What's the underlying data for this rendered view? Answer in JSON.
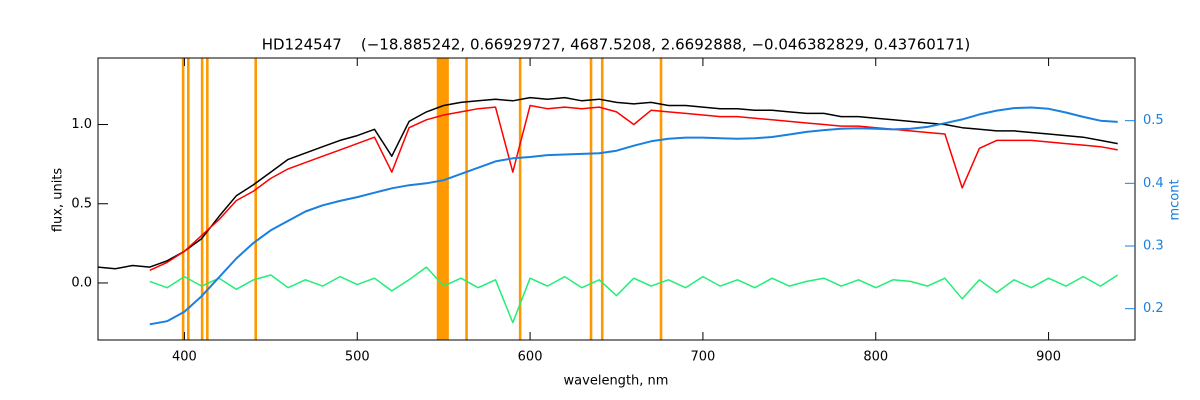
{
  "chart_data": {
    "type": "line",
    "title": "HD124547    (−18.885242, 0.66929727, 4687.5208, 2.6692888, −0.046382829, 0.43760171)",
    "x_label": "wavelength, nm",
    "y_label": "flux, units",
    "y2_label": "mcont",
    "xlim": [
      350,
      950
    ],
    "ylim": [
      -0.36,
      1.42
    ],
    "y2lim": [
      0.15,
      0.6
    ],
    "xticks": [
      400,
      500,
      600,
      700,
      800,
      900
    ],
    "yticks": [
      {
        "value": 0,
        "label": "0.0"
      },
      0.5,
      {
        "value": 1,
        "label": "1.0"
      }
    ],
    "y2ticks": [
      0.2,
      0.3,
      0.4,
      0.5
    ],
    "mask_color": "#ff9900",
    "masks": [
      [
        398.5,
        400
      ],
      [
        401.5,
        403
      ],
      [
        409.5,
        411
      ],
      [
        412.5,
        414
      ],
      [
        440.5,
        442
      ],
      [
        546,
        553
      ],
      [
        562.5,
        564
      ],
      [
        593.5,
        595
      ],
      [
        634.5,
        636
      ],
      [
        641,
        642.5
      ],
      [
        675,
        676.5
      ]
    ],
    "x": [
      350,
      360,
      370,
      380,
      390,
      400,
      410,
      420,
      430,
      440,
      450,
      460,
      470,
      480,
      490,
      500,
      510,
      520,
      530,
      540,
      550,
      560,
      570,
      580,
      590,
      600,
      610,
      620,
      630,
      640,
      650,
      660,
      670,
      680,
      690,
      700,
      710,
      720,
      730,
      740,
      750,
      760,
      770,
      780,
      790,
      800,
      810,
      820,
      830,
      840,
      850,
      860,
      870,
      880,
      890,
      900,
      910,
      920,
      930,
      940
    ],
    "series": [
      {
        "color": "#000000",
        "values": [
          0.1,
          0.09,
          0.11,
          0.1,
          0.14,
          0.2,
          0.28,
          0.42,
          0.55,
          0.62,
          0.7,
          0.78,
          0.82,
          0.86,
          0.9,
          0.93,
          0.97,
          0.8,
          1.02,
          1.08,
          1.12,
          1.14,
          1.15,
          1.16,
          1.15,
          1.17,
          1.16,
          1.17,
          1.15,
          1.16,
          1.14,
          1.13,
          1.14,
          1.12,
          1.12,
          1.11,
          1.1,
          1.1,
          1.09,
          1.09,
          1.08,
          1.07,
          1.07,
          1.05,
          1.05,
          1.04,
          1.03,
          1.02,
          1.01,
          1.0,
          0.98,
          0.97,
          0.96,
          0.96,
          0.95,
          0.94,
          0.93,
          0.92,
          0.9,
          0.88
        ]
      },
      {
        "color": "#ff0000",
        "values": [
          null,
          null,
          null,
          0.08,
          0.13,
          0.2,
          0.3,
          0.4,
          0.52,
          0.58,
          0.66,
          0.72,
          0.76,
          0.8,
          0.84,
          0.88,
          0.92,
          0.7,
          0.98,
          1.03,
          1.06,
          1.08,
          1.1,
          1.11,
          0.7,
          1.12,
          1.1,
          1.11,
          1.1,
          1.11,
          1.08,
          1.0,
          1.09,
          1.08,
          1.07,
          1.06,
          1.05,
          1.05,
          1.04,
          1.03,
          1.02,
          1.01,
          1.0,
          0.99,
          0.99,
          0.98,
          0.97,
          0.96,
          0.95,
          0.94,
          0.6,
          0.85,
          0.9,
          0.9,
          0.9,
          0.89,
          0.88,
          0.87,
          0.86,
          0.84
        ]
      },
      {
        "color": "#22ee77",
        "values": [
          null,
          null,
          null,
          0.01,
          -0.03,
          0.04,
          -0.02,
          0.03,
          -0.04,
          0.02,
          0.05,
          -0.03,
          0.02,
          -0.02,
          0.04,
          -0.01,
          0.03,
          -0.05,
          0.02,
          0.1,
          -0.02,
          0.03,
          -0.03,
          0.02,
          -0.25,
          0.03,
          -0.02,
          0.04,
          -0.03,
          0.02,
          -0.08,
          0.03,
          -0.02,
          0.02,
          -0.03,
          0.04,
          -0.02,
          0.02,
          -0.03,
          0.03,
          -0.02,
          0.01,
          0.03,
          -0.02,
          0.02,
          -0.03,
          0.02,
          0.01,
          -0.02,
          0.03,
          -0.1,
          0.02,
          -0.06,
          0.02,
          -0.03,
          0.03,
          -0.02,
          0.04,
          -0.02,
          0.05
        ]
      },
      {
        "color": "#1a80e0",
        "axis": "y2",
        "values": [
          null,
          null,
          null,
          0.175,
          0.18,
          0.195,
          0.22,
          0.25,
          0.28,
          0.305,
          0.325,
          0.34,
          0.355,
          0.365,
          0.372,
          0.378,
          0.385,
          0.392,
          0.397,
          0.4,
          0.405,
          0.415,
          0.425,
          0.435,
          0.44,
          0.442,
          0.445,
          0.446,
          0.447,
          0.448,
          0.452,
          0.46,
          0.467,
          0.471,
          0.473,
          0.473,
          0.472,
          0.471,
          0.472,
          0.474,
          0.478,
          0.482,
          0.485,
          0.487,
          0.488,
          0.487,
          0.486,
          0.487,
          0.49,
          0.496,
          0.502,
          0.51,
          0.516,
          0.52,
          0.521,
          0.519,
          0.513,
          0.506,
          0.5,
          0.498
        ]
      }
    ]
  }
}
